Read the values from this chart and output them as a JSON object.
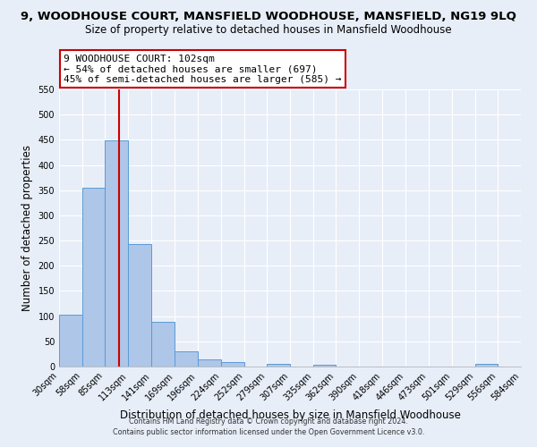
{
  "title": "9, WOODHOUSE COURT, MANSFIELD WOODHOUSE, MANSFIELD, NG19 9LQ",
  "subtitle": "Size of property relative to detached houses in Mansfield Woodhouse",
  "xlabel": "Distribution of detached houses by size in Mansfield Woodhouse",
  "ylabel": "Number of detached properties",
  "bin_edges": [
    30,
    58,
    85,
    113,
    141,
    169,
    196,
    224,
    252,
    279,
    307,
    335,
    362,
    390,
    418,
    446,
    473,
    501,
    529,
    556,
    584
  ],
  "bar_heights": [
    103,
    354,
    449,
    243,
    88,
    31,
    14,
    8,
    0,
    5,
    0,
    3,
    0,
    0,
    0,
    0,
    0,
    0,
    5,
    0
  ],
  "bar_color": "#aec6e8",
  "bar_edge_color": "#5b9bd5",
  "property_size": 102,
  "vline_color": "#cc0000",
  "ylim": [
    0,
    550
  ],
  "annotation_title": "9 WOODHOUSE COURT: 102sqm",
  "annotation_line1": "← 54% of detached houses are smaller (697)",
  "annotation_line2": "45% of semi-detached houses are larger (585) →",
  "annotation_box_color": "#ffffff",
  "annotation_box_edgecolor": "#cc0000",
  "footer_line1": "Contains HM Land Registry data © Crown copyright and database right 2024.",
  "footer_line2": "Contains public sector information licensed under the Open Government Licence v3.0.",
  "tick_labels": [
    "30sqm",
    "58sqm",
    "85sqm",
    "113sqm",
    "141sqm",
    "169sqm",
    "196sqm",
    "224sqm",
    "252sqm",
    "279sqm",
    "307sqm",
    "335sqm",
    "362sqm",
    "390sqm",
    "418sqm",
    "446sqm",
    "473sqm",
    "501sqm",
    "529sqm",
    "556sqm",
    "584sqm"
  ],
  "background_color": "#e8eef8",
  "grid_color": "#ffffff",
  "title_fontsize": 9.5,
  "subtitle_fontsize": 8.5,
  "xlabel_fontsize": 8.5,
  "ylabel_fontsize": 8.5,
  "tick_fontsize": 7.0,
  "annotation_fontsize": 8.0,
  "footer_fontsize": 5.8
}
